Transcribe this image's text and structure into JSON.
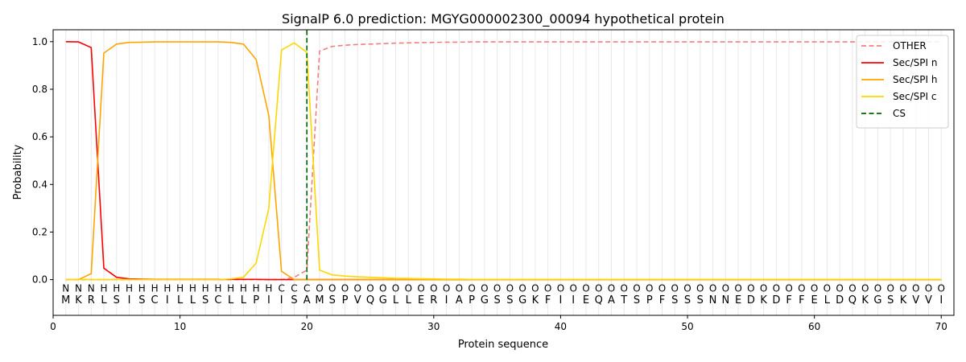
{
  "chart_data": {
    "type": "line",
    "title": "SignalP 6.0 prediction: MGYG000002300_00094 hypothetical protein",
    "xlabel": "Protein sequence",
    "ylabel": "Probability",
    "xlim": [
      0,
      71
    ],
    "ylim": [
      -0.15,
      1.05
    ],
    "xticks": [
      0,
      10,
      20,
      30,
      40,
      50,
      60,
      70
    ],
    "yticks": [
      0.0,
      0.2,
      0.4,
      0.6,
      0.8,
      1.0
    ],
    "xtick_labels": [
      "0",
      "10",
      "20",
      "30",
      "40",
      "50",
      "60",
      "70"
    ],
    "ytick_labels": [
      "0.0",
      "0.2",
      "0.4",
      "0.6",
      "0.8",
      "1.0"
    ],
    "grid": "vertical lines at each residue",
    "legend_position": "top-right",
    "sequence": [
      "M",
      "K",
      "R",
      "L",
      "S",
      "I",
      "S",
      "C",
      "I",
      "L",
      "L",
      "S",
      "C",
      "L",
      "L",
      "P",
      "I",
      "I",
      "S",
      "A",
      "M",
      "S",
      "P",
      "V",
      "Q",
      "G",
      "L",
      "L",
      "E",
      "R",
      "I",
      "A",
      "P",
      "G",
      "S",
      "S",
      "G",
      "K",
      "F",
      "I",
      "I",
      "E",
      "Q",
      "A",
      "T",
      "S",
      "P",
      "F",
      "S",
      "S",
      "S",
      "N",
      "N",
      "E",
      "D",
      "K",
      "D",
      "F",
      "F",
      "E",
      "L",
      "D",
      "Q",
      "K",
      "G",
      "S",
      "K",
      "V",
      "V",
      "I"
    ],
    "labels": [
      "N",
      "N",
      "N",
      "H",
      "H",
      "H",
      "H",
      "H",
      "H",
      "H",
      "H",
      "H",
      "H",
      "H",
      "H",
      "H",
      "H",
      "C",
      "C",
      "C",
      "O",
      "O",
      "O",
      "O",
      "O",
      "O",
      "O",
      "O",
      "O",
      "O",
      "O",
      "O",
      "O",
      "O",
      "O",
      "O",
      "O",
      "O",
      "O",
      "O",
      "O",
      "O",
      "O",
      "O",
      "O",
      "O",
      "O",
      "O",
      "O",
      "O",
      "O",
      "O",
      "O",
      "O",
      "O",
      "O",
      "O",
      "O",
      "O",
      "O",
      "O",
      "O",
      "O",
      "O",
      "O",
      "O",
      "O",
      "O",
      "O",
      "O"
    ],
    "label_colors": {
      "N": "#ff0000",
      "H": "#ffa500",
      "C": "#ffd700",
      "O": "#808080"
    },
    "series": [
      {
        "name": "OTHER",
        "color": "#f08080",
        "dash": "dashed",
        "values": [
          0,
          0,
          0,
          0,
          0,
          0,
          0,
          0,
          0,
          0,
          0,
          0,
          0,
          0,
          0,
          0,
          0,
          0,
          0.01,
          0.04,
          0.96,
          0.98,
          0.985,
          0.988,
          0.99,
          0.992,
          0.994,
          0.995,
          0.996,
          0.997,
          0.998,
          0.998,
          0.999,
          0.999,
          0.999,
          0.999,
          0.999,
          0.999,
          0.999,
          0.999,
          0.999,
          0.999,
          0.999,
          0.999,
          0.999,
          0.999,
          0.999,
          0.999,
          0.999,
          0.999,
          0.999,
          0.999,
          0.999,
          0.999,
          0.999,
          0.999,
          0.999,
          0.999,
          0.999,
          0.999,
          0.999,
          0.999,
          0.999,
          0.999,
          0.999,
          0.999,
          0.999,
          0.999,
          0.999,
          0.999
        ]
      },
      {
        "name": "Sec/SPI n",
        "color": "#ff0000",
        "dash": "solid",
        "values": [
          1.0,
          0.999,
          0.975,
          0.048,
          0.01,
          0.003,
          0.002,
          0.001,
          0.001,
          0.001,
          0.001,
          0.001,
          0.001,
          0.001,
          0.001,
          0.001,
          0,
          0,
          0,
          0,
          0,
          0,
          0,
          0,
          0,
          0,
          0,
          0,
          0,
          0,
          0,
          0,
          0,
          0,
          0,
          0,
          0,
          0,
          0,
          0,
          0,
          0,
          0,
          0,
          0,
          0,
          0,
          0,
          0,
          0,
          0,
          0,
          0,
          0,
          0,
          0,
          0,
          0,
          0,
          0,
          0,
          0,
          0,
          0,
          0,
          0,
          0,
          0,
          0,
          0
        ]
      },
      {
        "name": "Sec/SPI h",
        "color": "#ffa500",
        "dash": "solid",
        "values": [
          0,
          0,
          0.025,
          0.952,
          0.99,
          0.997,
          0.998,
          0.999,
          0.999,
          0.999,
          0.999,
          0.999,
          0.999,
          0.997,
          0.99,
          0.925,
          0.69,
          0.035,
          0.0,
          0.0,
          0,
          0,
          0,
          0,
          0,
          0,
          0,
          0,
          0,
          0,
          0,
          0,
          0,
          0,
          0,
          0,
          0,
          0,
          0,
          0,
          0,
          0,
          0,
          0,
          0,
          0,
          0,
          0,
          0,
          0,
          0,
          0,
          0,
          0,
          0,
          0,
          0,
          0,
          0,
          0,
          0,
          0,
          0,
          0,
          0,
          0,
          0,
          0,
          0,
          0
        ]
      },
      {
        "name": "Sec/SPI c",
        "color": "#ffd700",
        "dash": "solid",
        "values": [
          0,
          0,
          0,
          0,
          0,
          0,
          0,
          0,
          0,
          0,
          0,
          0,
          0,
          0.003,
          0.01,
          0.07,
          0.3,
          0.965,
          0.995,
          0.955,
          0.04,
          0.02,
          0.015,
          0.012,
          0.01,
          0.008,
          0.006,
          0.005,
          0.004,
          0.003,
          0.002,
          0.002,
          0.001,
          0.001,
          0.001,
          0.001,
          0.001,
          0.001,
          0.001,
          0.001,
          0.001,
          0.001,
          0.001,
          0.001,
          0.001,
          0.001,
          0.001,
          0.001,
          0.001,
          0.001,
          0.001,
          0.001,
          0.001,
          0.001,
          0.001,
          0.001,
          0.001,
          0.001,
          0.001,
          0.001,
          0.001,
          0.001,
          0.001,
          0.001,
          0.001,
          0.001,
          0.001,
          0.001,
          0.001,
          0.001
        ]
      }
    ],
    "cs": {
      "name": "CS",
      "position": 20,
      "color": "#006400",
      "dash": "dashed"
    }
  }
}
